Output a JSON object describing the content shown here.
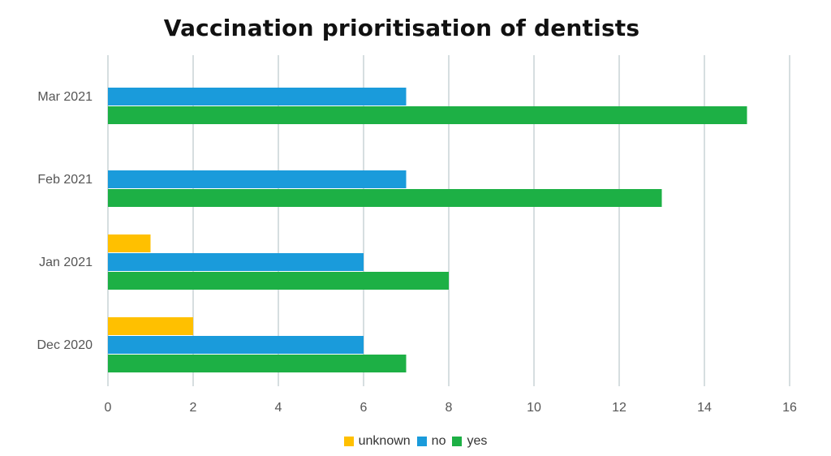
{
  "chart_data": {
    "type": "bar",
    "orientation": "horizontal",
    "title": "Vaccination prioritisation of dentists",
    "categories": [
      "Mar 2021",
      "Feb 2021",
      "Jan 2021",
      "Dec 2020"
    ],
    "series": [
      {
        "name": "unknown",
        "color": "#FFC000",
        "values": [
          0,
          0,
          1,
          2
        ]
      },
      {
        "name": "no",
        "color": "#1A9BDB",
        "values": [
          7,
          7,
          6,
          6
        ]
      },
      {
        "name": "yes",
        "color": "#1DB045",
        "values": [
          15,
          13,
          8,
          7
        ]
      }
    ],
    "xlim": [
      0,
      16
    ],
    "xticks": [
      "0",
      "2",
      "4",
      "6",
      "8",
      "10",
      "12",
      "14",
      "16"
    ],
    "grid": true,
    "legend_position": "bottom"
  }
}
